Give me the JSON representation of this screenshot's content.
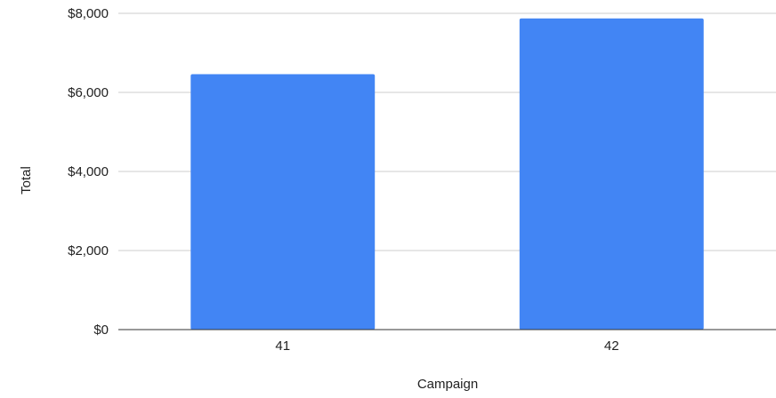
{
  "chart_data": {
    "type": "bar",
    "title": "",
    "xlabel": "Campaign",
    "ylabel": "Total",
    "categories": [
      "41",
      "42"
    ],
    "series": [
      {
        "values": [
          6460,
          7870
        ],
        "color": "#4285f4"
      }
    ],
    "ylim": [
      0,
      8000
    ],
    "yticks": [
      0,
      2000,
      4000,
      6000,
      8000
    ],
    "ytick_labels": [
      "$0",
      "$2,000",
      "$4,000",
      "$6,000",
      "$8,000"
    ],
    "grid": true,
    "legend": "none",
    "colors": {
      "bar": "#4285f4",
      "gridline": "#cccccc",
      "baseline": "#333333",
      "text": "#222222"
    }
  }
}
